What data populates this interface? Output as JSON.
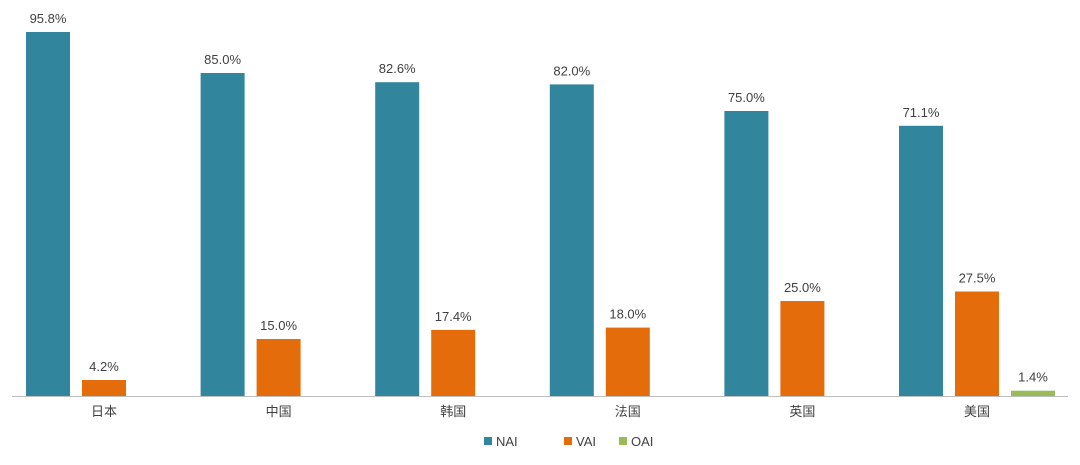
{
  "chart_data": {
    "type": "bar",
    "categories": [
      "日本",
      "中国",
      "韩国",
      "法国",
      "英国",
      "美国"
    ],
    "series": [
      {
        "name": "NAI",
        "color": "#31859C",
        "values": [
          95.8,
          85.0,
          82.6,
          82.0,
          75.0,
          71.1
        ],
        "labels": [
          "95.8%",
          "85.0%",
          "82.6%",
          "82.0%",
          "75.0%",
          "71.1%"
        ]
      },
      {
        "name": "VAI",
        "color": "#E46C0A",
        "values": [
          4.2,
          15.0,
          17.4,
          18.0,
          25.0,
          27.5
        ],
        "labels": [
          "4.2%",
          "15.0%",
          "17.4%",
          "18.0%",
          "25.0%",
          "27.5%"
        ]
      },
      {
        "name": "OAI",
        "color": "#9BBB59",
        "values": [
          null,
          null,
          null,
          null,
          null,
          1.4
        ],
        "labels": [
          null,
          null,
          null,
          null,
          null,
          "1.4%"
        ]
      }
    ],
    "ylim": [
      0,
      100
    ],
    "grid": false,
    "legend": "bottom-center",
    "axis_color": "#BFBFBF"
  }
}
